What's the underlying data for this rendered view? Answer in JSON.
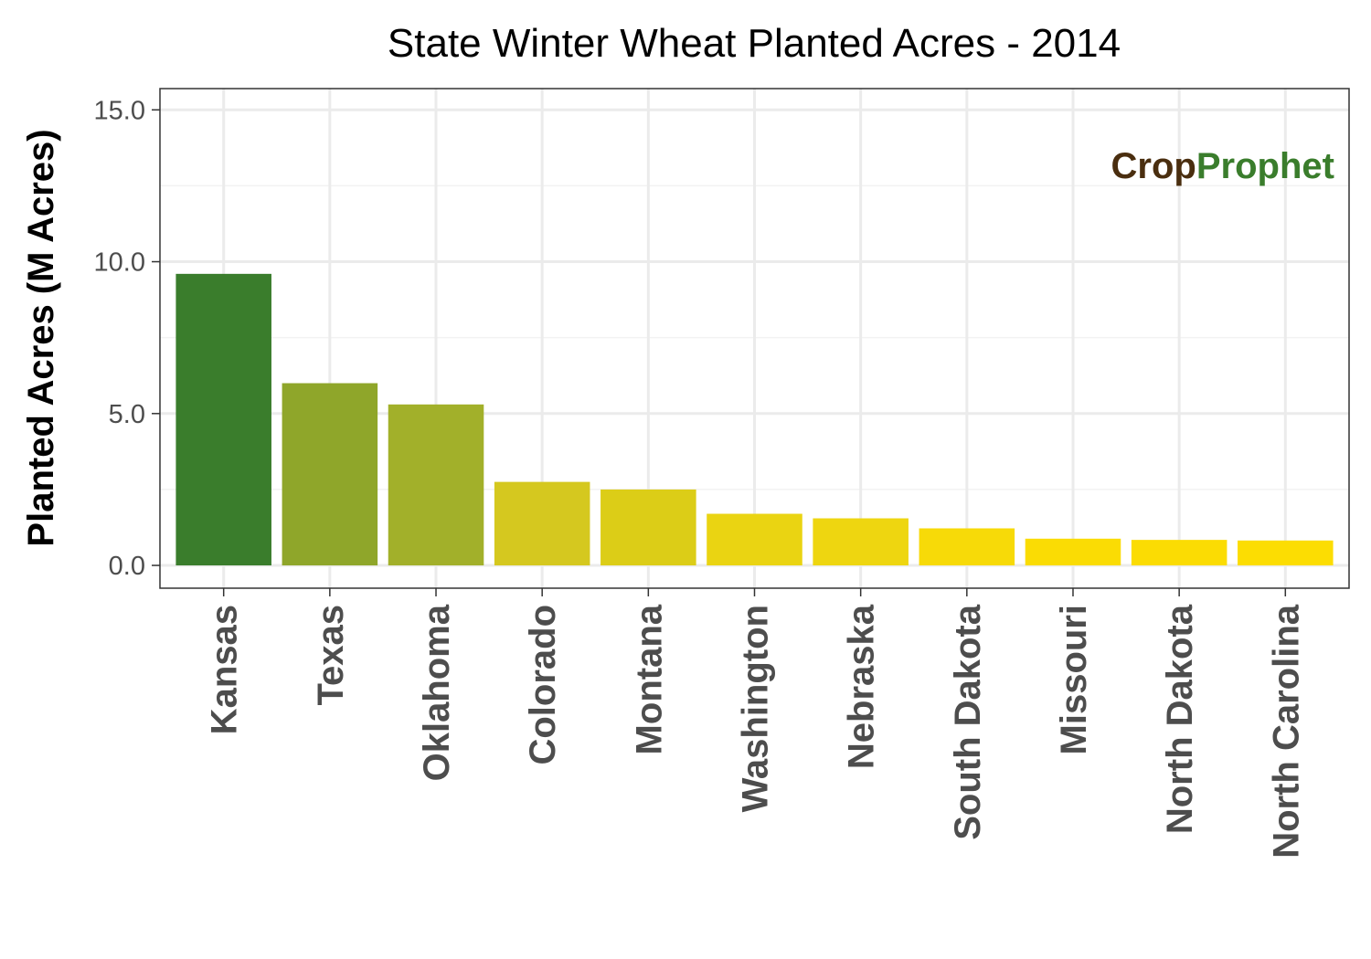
{
  "chart_data": {
    "type": "bar",
    "title": "State Winter Wheat Planted Acres - 2014",
    "xlabel": "",
    "ylabel": "Planted Acres (M Acres)",
    "categories": [
      "Kansas",
      "Texas",
      "Oklahoma",
      "Colorado",
      "Montana",
      "Washington",
      "Nebraska",
      "South Dakota",
      "Missouri",
      "North Dakota",
      "North Carolina"
    ],
    "values": [
      9.6,
      6.0,
      5.3,
      2.75,
      2.5,
      1.7,
      1.55,
      1.22,
      0.88,
      0.84,
      0.82
    ],
    "ylim": [
      -0.75,
      15.7
    ],
    "yticks": [
      0,
      5,
      10,
      15
    ],
    "ytick_labels": [
      "0.0",
      "5.0",
      "10.0",
      "15.0"
    ],
    "bar_colors": [
      "#3a7d2c",
      "#8fa62a",
      "#a2b02a",
      "#d5c81f",
      "#dccd17",
      "#ead412",
      "#eed610",
      "#f7da08",
      "#fadc04",
      "#fbdc03",
      "#fcdd02"
    ],
    "grid": true,
    "legend": "none"
  },
  "watermark": {
    "part1": "Crop",
    "part2": "Prophet",
    "color1": "#4a2e0f",
    "color2": "#3a7d2c"
  }
}
